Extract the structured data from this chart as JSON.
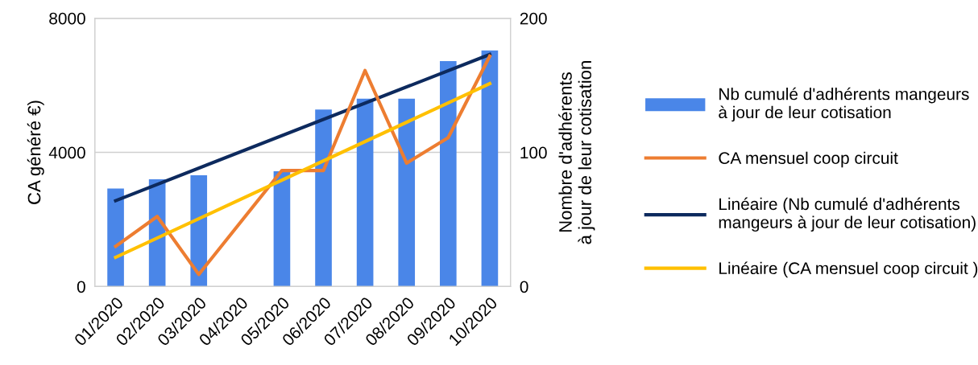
{
  "chart_data": {
    "type": "bar",
    "categories": [
      "01/2020",
      "02/2020",
      "03/2020",
      "04/2020",
      "05/2020",
      "06/2020",
      "07/2020",
      "08/2020",
      "09/2020",
      "10/2020"
    ],
    "series": [
      {
        "name": "Nb cumulé d'adhérents mangeurs\nà jour de leur cotisation",
        "axis": "y2",
        "color": "#4a86e8",
        "values": [
          73,
          80,
          83,
          null,
          86,
          132,
          140,
          140,
          168,
          176
        ]
      },
      {
        "name": "CA mensuel coop circuit",
        "type": "line",
        "color": "#ed7d31",
        "values": [
          1200,
          2090,
          360,
          null,
          3460,
          3460,
          6440,
          3680,
          4440,
          6870
        ]
      },
      {
        "name": "Linéaire (Nb cumulé d'adhérents\nmangeurs à jour de leur cotisation)",
        "type": "line",
        "axis": "y2",
        "color": "#0d2a5e",
        "x": [
          "01/2020",
          "10/2020"
        ],
        "values": [
          64,
          173
        ]
      },
      {
        "name": "Linéaire (CA mensuel coop circuit )",
        "type": "line",
        "color": "#ffc000",
        "x": [
          "01/2020",
          "10/2020"
        ],
        "values": [
          870,
          6050
        ]
      }
    ],
    "ylabel": "CA généré €)",
    "y2label": "Nombre d'adhérents\nà jour de leur cotisation",
    "ylim": [
      0,
      8000
    ],
    "yticks": [
      0,
      4000,
      8000
    ],
    "y2lim": [
      0,
      200
    ],
    "y2ticks": [
      0,
      100,
      200
    ],
    "grid": "y",
    "legend": "right",
    "marker": "none",
    "line_style": "solid"
  }
}
